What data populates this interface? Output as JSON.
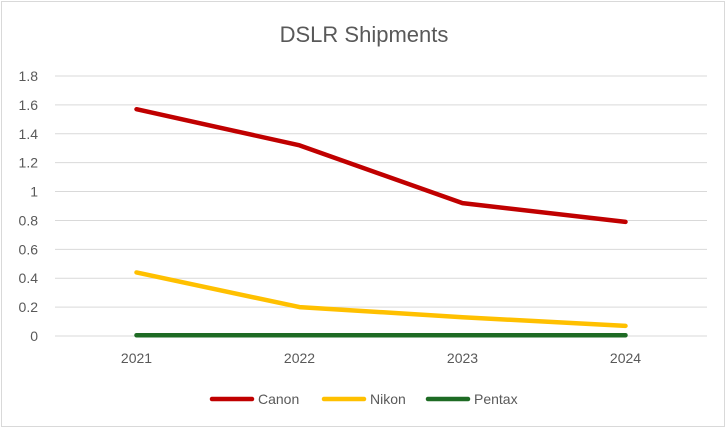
{
  "chart_data": {
    "type": "line",
    "title": "DSLR Shipments",
    "xlabel": "",
    "ylabel": "",
    "categories": [
      "2021",
      "2022",
      "2023",
      "2024"
    ],
    "ylim": [
      0,
      1.8
    ],
    "yticks": [
      "0",
      "0.2",
      "0.4",
      "0.6",
      "0.8",
      "1",
      "1.2",
      "1.4",
      "1.6",
      "1.8"
    ],
    "grid": true,
    "legend": "bottom",
    "series": [
      {
        "name": "Canon",
        "color": "#c00000",
        "values": [
          1.57,
          1.32,
          0.92,
          0.79
        ]
      },
      {
        "name": "Nikon",
        "color": "#ffc000",
        "values": [
          0.44,
          0.2,
          0.13,
          0.07
        ]
      },
      {
        "name": "Pentax",
        "color": "#1e6b24",
        "values": [
          0.005,
          0.005,
          0.005,
          0.005
        ]
      }
    ]
  }
}
